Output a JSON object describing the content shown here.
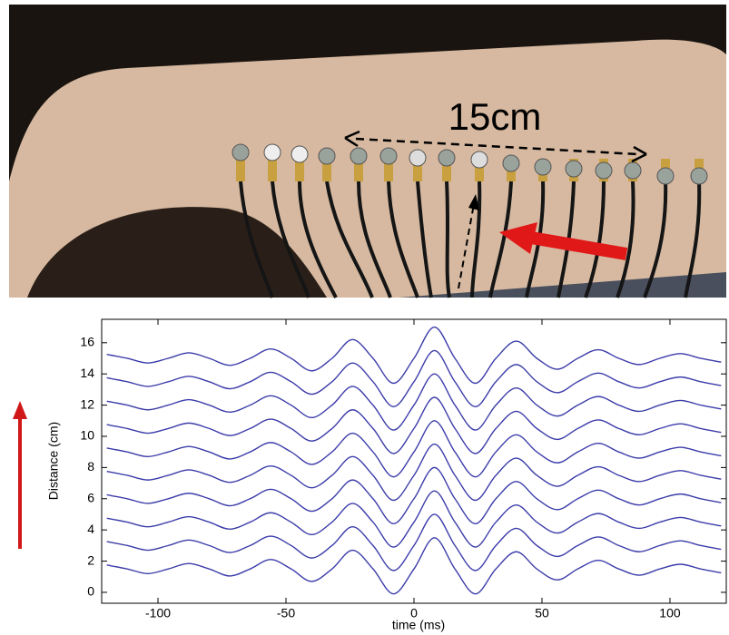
{
  "photo": {
    "label": "15cm"
  },
  "chart_data": {
    "type": "line",
    "xlabel": "time (ms)",
    "ylabel": "Distance (cm)",
    "xlim": [
      -122,
      122
    ],
    "ylim": [
      -0.7,
      17.5
    ],
    "xticks": [
      -100,
      -50,
      0,
      50,
      100
    ],
    "yticks": [
      0,
      2,
      4,
      6,
      8,
      10,
      12,
      14,
      16
    ],
    "x": [
      -120,
      -112,
      -104,
      -96,
      -88,
      -80,
      -72,
      -64,
      -56,
      -48,
      -40,
      -32,
      -24,
      -16,
      -8,
      0,
      8,
      16,
      24,
      32,
      40,
      48,
      56,
      64,
      72,
      80,
      88,
      96,
      104,
      112,
      120
    ],
    "series": [
      {
        "color": "#3c3caa",
        "values": [
          1.75,
          1.5,
          1.2,
          1.5,
          1.85,
          1.5,
          1.05,
          1.5,
          2.1,
          1.5,
          0.7,
          1.5,
          2.7,
          1.5,
          -0.1,
          1.5,
          3.5,
          1.5,
          -0.1,
          1.5,
          2.6,
          1.5,
          0.8,
          1.5,
          2.05,
          1.5,
          1.1,
          1.5,
          1.8,
          1.5,
          1.25
        ]
      },
      {
        "color": "#3c3caa",
        "values": [
          3.25,
          3,
          2.7,
          3,
          3.35,
          3,
          2.55,
          3,
          3.6,
          3,
          2.2,
          3,
          4.2,
          3,
          1.4,
          3,
          5,
          3,
          1.4,
          3,
          4.1,
          3,
          2.3,
          3,
          3.55,
          3,
          2.6,
          3,
          3.3,
          3,
          2.75
        ]
      },
      {
        "color": "#3c3caa",
        "values": [
          4.75,
          4.5,
          4.2,
          4.5,
          4.85,
          4.5,
          4.05,
          4.5,
          5.1,
          4.5,
          3.7,
          4.5,
          5.7,
          4.5,
          2.9,
          4.5,
          6.5,
          4.5,
          2.9,
          4.5,
          5.6,
          4.5,
          3.8,
          4.5,
          5.05,
          4.5,
          4.1,
          4.5,
          4.8,
          4.5,
          4.25
        ]
      },
      {
        "color": "#3c3caa",
        "values": [
          6.25,
          6,
          5.7,
          6,
          6.35,
          6,
          5.55,
          6,
          6.6,
          6,
          5.2,
          6,
          7.2,
          6,
          4.4,
          6,
          8,
          6,
          4.4,
          6,
          7.1,
          6,
          5.3,
          6,
          6.55,
          6,
          5.6,
          6,
          6.3,
          6,
          5.75
        ]
      },
      {
        "color": "#3c3caa",
        "values": [
          7.75,
          7.5,
          7.2,
          7.5,
          7.85,
          7.5,
          7.05,
          7.5,
          8.1,
          7.5,
          6.7,
          7.5,
          8.7,
          7.5,
          5.9,
          7.5,
          9.5,
          7.5,
          5.9,
          7.5,
          8.6,
          7.5,
          6.8,
          7.5,
          8.05,
          7.5,
          7.1,
          7.5,
          7.8,
          7.5,
          7.25
        ]
      },
      {
        "color": "#3c3caa",
        "values": [
          9.25,
          9,
          8.7,
          9,
          9.35,
          9,
          8.55,
          9,
          9.6,
          9,
          8.2,
          9,
          10.2,
          9,
          7.4,
          9,
          11,
          9,
          7.4,
          9,
          10.1,
          9,
          8.3,
          9,
          9.55,
          9,
          8.6,
          9,
          9.3,
          9,
          8.75
        ]
      },
      {
        "color": "#3c3caa",
        "values": [
          10.75,
          10.5,
          10.2,
          10.5,
          10.85,
          10.5,
          10.05,
          10.5,
          11.1,
          10.5,
          9.7,
          10.5,
          11.7,
          10.5,
          8.9,
          10.5,
          12.5,
          10.5,
          8.9,
          10.5,
          11.6,
          10.5,
          9.8,
          10.5,
          11.05,
          10.5,
          10.1,
          10.5,
          10.8,
          10.5,
          10.25
        ]
      },
      {
        "color": "#3c3caa",
        "values": [
          12.25,
          12,
          11.7,
          12,
          12.35,
          12,
          11.55,
          12,
          12.6,
          12,
          11.2,
          12,
          13.2,
          12,
          10.4,
          12,
          14,
          12,
          10.4,
          12,
          13.1,
          12,
          11.3,
          12,
          12.55,
          12,
          11.6,
          12,
          12.3,
          12,
          11.75
        ]
      },
      {
        "color": "#3c3caa",
        "values": [
          13.75,
          13.5,
          13.2,
          13.5,
          13.85,
          13.5,
          13.05,
          13.5,
          14.1,
          13.5,
          12.7,
          13.5,
          14.7,
          13.5,
          11.9,
          13.5,
          15.5,
          13.5,
          11.9,
          13.5,
          14.6,
          13.5,
          12.8,
          13.5,
          14.05,
          13.5,
          13.1,
          13.5,
          13.8,
          13.5,
          13.25
        ]
      },
      {
        "color": "#3c3caa",
        "values": [
          15.25,
          15,
          14.7,
          15,
          15.35,
          15,
          14.55,
          15,
          15.6,
          15,
          14.2,
          15,
          16.2,
          15,
          13.4,
          15,
          17,
          15,
          13.4,
          15,
          16.1,
          15,
          14.3,
          15,
          15.55,
          15,
          14.6,
          15,
          15.3,
          15,
          14.75
        ]
      }
    ]
  }
}
